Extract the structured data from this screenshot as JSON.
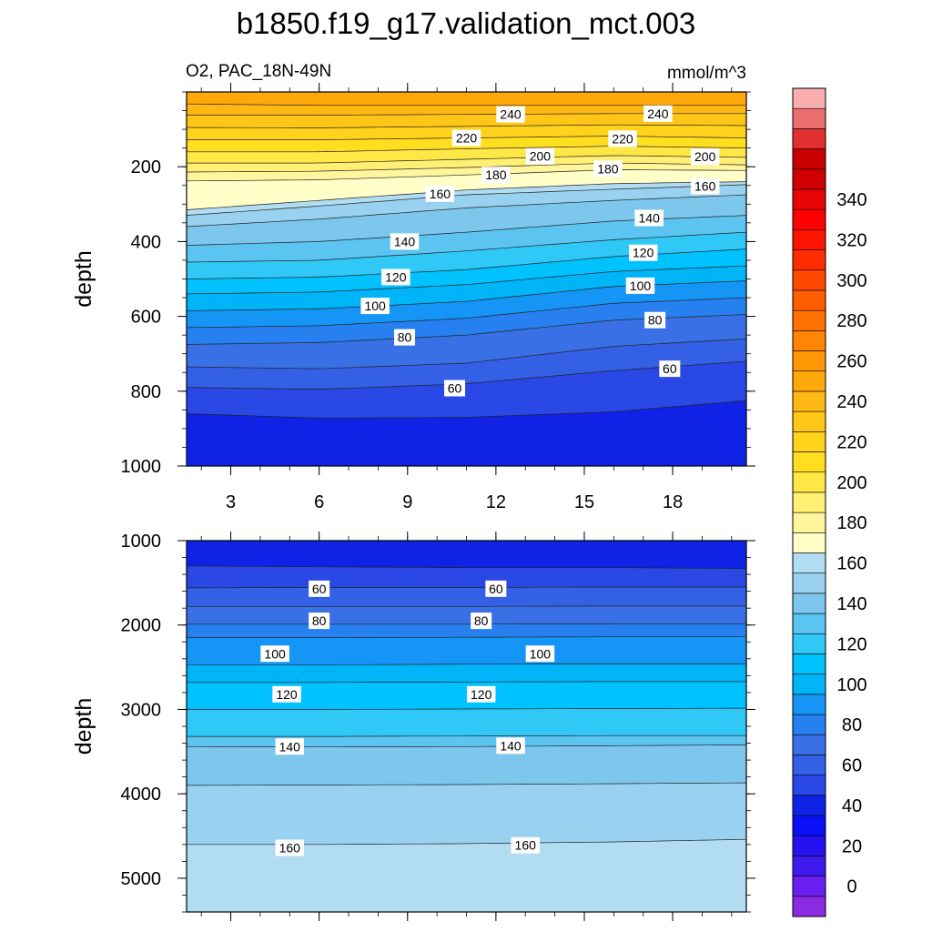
{
  "chart_data": {
    "title": "b1850.f19_g17.validation_mct.003",
    "left_subtitle": "O2, PAC_18N-49N",
    "right_subtitle": "mmol/m^3",
    "type": "contour",
    "panels": [
      {
        "name": "upper",
        "ylabel": "depth",
        "yticks": [
          "200",
          "400",
          "600",
          "800",
          "1000"
        ],
        "xticks": [
          "3",
          "6",
          "9",
          "12",
          "15",
          "18"
        ],
        "ylim": [
          0,
          1000
        ],
        "xlim": [
          1.5,
          20.5
        ],
        "contour_labels": [
          {
            "text": "240",
            "x": 12.5,
            "y": 60
          },
          {
            "text": "240",
            "x": 17.5,
            "y": 58
          },
          {
            "text": "220",
            "x": 11.0,
            "y": 123
          },
          {
            "text": "220",
            "x": 16.3,
            "y": 125
          },
          {
            "text": "200",
            "x": 13.5,
            "y": 172
          },
          {
            "text": "200",
            "x": 19.1,
            "y": 173
          },
          {
            "text": "180",
            "x": 12.0,
            "y": 222
          },
          {
            "text": "180",
            "x": 15.8,
            "y": 205
          },
          {
            "text": "160",
            "x": 10.1,
            "y": 272
          },
          {
            "text": "160",
            "x": 19.1,
            "y": 252
          },
          {
            "text": "140",
            "x": 8.9,
            "y": 400
          },
          {
            "text": "140",
            "x": 17.2,
            "y": 337
          },
          {
            "text": "120",
            "x": 8.6,
            "y": 495
          },
          {
            "text": "120",
            "x": 17.0,
            "y": 430
          },
          {
            "text": "100",
            "x": 7.9,
            "y": 572
          },
          {
            "text": "100",
            "x": 16.9,
            "y": 518
          },
          {
            "text": "80",
            "x": 8.9,
            "y": 656
          },
          {
            "text": "80",
            "x": 17.4,
            "y": 610
          },
          {
            "text": "60",
            "x": 10.6,
            "y": 792
          },
          {
            "text": "60",
            "x": 17.9,
            "y": 740
          }
        ]
      },
      {
        "name": "lower",
        "ylabel": "depth",
        "yticks": [
          "1000",
          "2000",
          "3000",
          "4000",
          "5000"
        ],
        "ylim": [
          1000,
          5400
        ],
        "xlim": [
          1.5,
          20.5
        ],
        "contour_labels": [
          {
            "text": "60",
            "x": 6.0,
            "y": 1570
          },
          {
            "text": "60",
            "x": 12.0,
            "y": 1570
          },
          {
            "text": "80",
            "x": 6.0,
            "y": 1950
          },
          {
            "text": "80",
            "x": 11.5,
            "y": 1950
          },
          {
            "text": "100",
            "x": 4.5,
            "y": 2340
          },
          {
            "text": "100",
            "x": 13.5,
            "y": 2340
          },
          {
            "text": "120",
            "x": 4.9,
            "y": 2820
          },
          {
            "text": "120",
            "x": 11.5,
            "y": 2820
          },
          {
            "text": "140",
            "x": 5.0,
            "y": 3440
          },
          {
            "text": "140",
            "x": 12.5,
            "y": 3430
          },
          {
            "text": "160",
            "x": 5.0,
            "y": 4640
          },
          {
            "text": "160",
            "x": 13.0,
            "y": 4610
          }
        ]
      }
    ],
    "colorbar": {
      "labels": [
        "0",
        "20",
        "40",
        "60",
        "80",
        "100",
        "120",
        "140",
        "160",
        "180",
        "200",
        "220",
        "240",
        "260",
        "280",
        "300",
        "320",
        "340"
      ],
      "range": [
        -10,
        360
      ],
      "step": 10,
      "colors": [
        "#8a2be2",
        "#6a1ff0",
        "#3f1aed",
        "#2611f0",
        "#0a10f5",
        "#0f22e6",
        "#2a48e5",
        "#3360e5",
        "#3a70e5",
        "#2680f0",
        "#1596f7",
        "#00b4f8",
        "#00c2ff",
        "#30c8f7",
        "#5bc4f1",
        "#7ec7ec",
        "#98d2f0",
        "#b1dcf2",
        "#ffffc7",
        "#fff59c",
        "#fff073",
        "#ffe746",
        "#ffde20",
        "#ffd21c",
        "#ffc618",
        "#ffb813",
        "#ffa80a",
        "#ff9704",
        "#ff8503",
        "#ff7201",
        "#ff5e00",
        "#ff4800",
        "#ff2d00",
        "#ff1400",
        "#ff0000",
        "#e80505",
        "#d00000",
        "#c80000",
        "#e03030",
        "#ec6f6f",
        "#f7adad"
      ]
    }
  }
}
